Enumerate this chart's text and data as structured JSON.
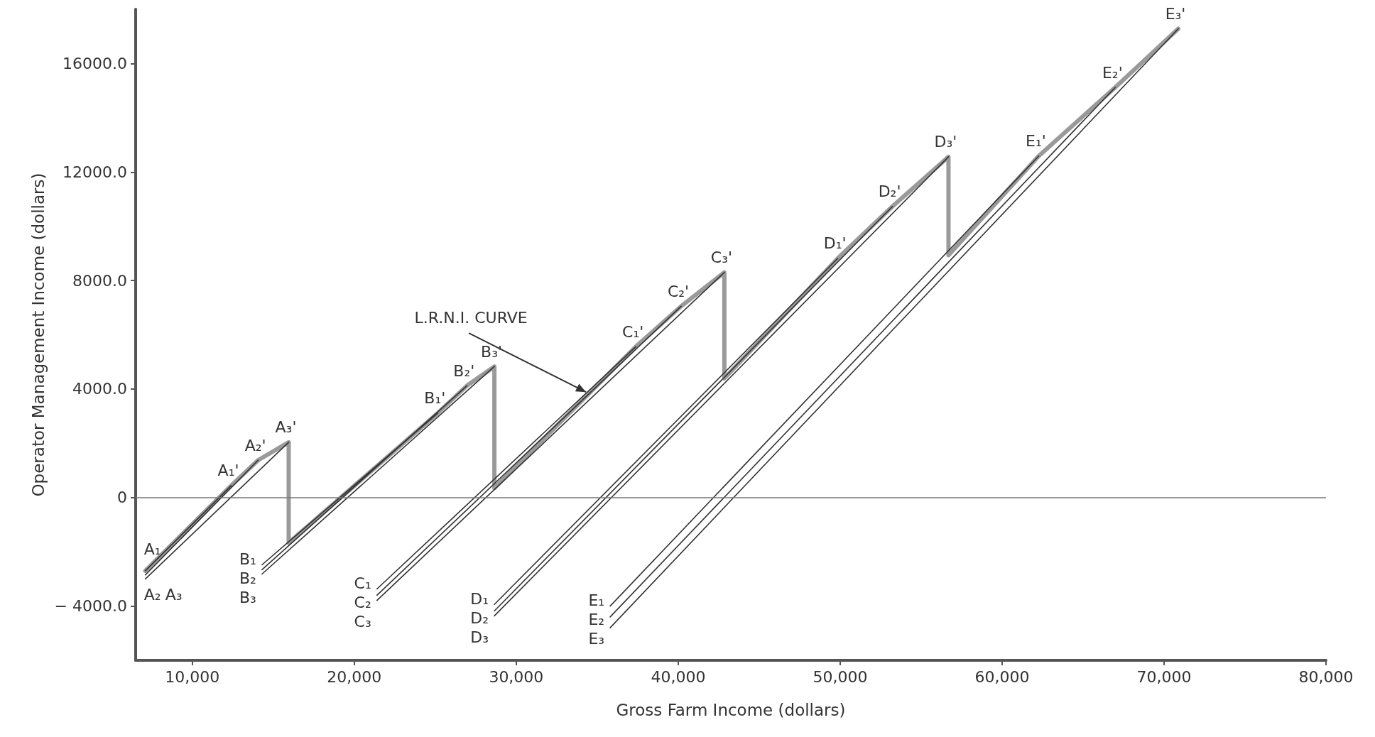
{
  "chart_data": {
    "type": "line",
    "xlabel": "Gross Farm Income (dollars)",
    "ylabel": "Operator Management Income (dollars)",
    "xlim": [
      6500,
      80000
    ],
    "ylim": [
      -6000,
      18000
    ],
    "xticks": [
      {
        "value": 10000,
        "label": "10,000"
      },
      {
        "value": 20000,
        "label": "20,000"
      },
      {
        "value": 30000,
        "label": "30,000"
      },
      {
        "value": 40000,
        "label": "40,000"
      },
      {
        "value": 50000,
        "label": "50,000"
      },
      {
        "value": 60000,
        "label": "60,000"
      },
      {
        "value": 70000,
        "label": "70,000"
      },
      {
        "value": 80000,
        "label": "80,000"
      }
    ],
    "yticks": [
      {
        "value": -4000,
        "label": "− 4000.0"
      },
      0,
      {
        "value": 4000,
        "label": "4000.0"
      },
      {
        "value": 8000,
        "label": "8000.0"
      },
      {
        "value": 12000,
        "label": "12000.0"
      },
      {
        "value": 16000,
        "label": "16000.0"
      }
    ],
    "grid": false,
    "legend": false,
    "marker": "none",
    "line_style": "solid",
    "ref_lines": [
      {
        "axis": "y",
        "value": 0,
        "color": "#777777"
      }
    ],
    "series": [
      {
        "color": "#9a9a9a",
        "x": [
          7100,
          12400,
          14070,
          15950,
          15950,
          25150,
          26950,
          28650,
          28650,
          37380,
          40180,
          42850,
          42850,
          49860,
          53230,
          56690,
          56690,
          62260,
          66990,
          70880
        ],
        "values": [
          -2700,
          440,
          1380,
          2040,
          -1670,
          3110,
          4120,
          4830,
          350,
          5560,
          7050,
          8300,
          4390,
          8820,
          10730,
          12560,
          8930,
          12590,
          15120,
          17280
        ]
      },
      {
        "name": "A₁",
        "color": "#333333",
        "x": [
          7100,
          12400
        ],
        "values": [
          -2700,
          440
        ]
      },
      {
        "name": "A₂",
        "color": "#333333",
        "x": [
          7100,
          14070
        ],
        "values": [
          -2850,
          1380
        ]
      },
      {
        "name": "A₃",
        "color": "#333333",
        "x": [
          7100,
          15950
        ],
        "values": [
          -3000,
          2040
        ]
      },
      {
        "name": "B₁",
        "color": "#333333",
        "x": [
          14300,
          25150
        ],
        "values": [
          -2480,
          3110
        ]
      },
      {
        "name": "B₂",
        "color": "#333333",
        "x": [
          14300,
          26950
        ],
        "values": [
          -2660,
          4120
        ]
      },
      {
        "name": "B₃",
        "color": "#333333",
        "x": [
          14300,
          28650
        ],
        "values": [
          -2820,
          4830
        ]
      },
      {
        "name": "C₁",
        "color": "#333333",
        "x": [
          21400,
          37380
        ],
        "values": [
          -3370,
          5560
        ]
      },
      {
        "name": "C₂",
        "color": "#333333",
        "x": [
          21400,
          40180
        ],
        "values": [
          -3600,
          7050
        ]
      },
      {
        "name": "C₃",
        "color": "#333333",
        "x": [
          21400,
          42850
        ],
        "values": [
          -3790,
          8300
        ]
      },
      {
        "name": "D₁",
        "color": "#333333",
        "x": [
          28650,
          49860
        ],
        "values": [
          -3940,
          8820
        ]
      },
      {
        "name": "D₂",
        "color": "#333333",
        "x": [
          28650,
          53230
        ],
        "values": [
          -4180,
          10730
        ]
      },
      {
        "name": "D₃",
        "color": "#333333",
        "x": [
          28650,
          56690
        ],
        "values": [
          -4360,
          12560
        ]
      },
      {
        "name": "E₁",
        "color": "#333333",
        "x": [
          35800,
          62260
        ],
        "values": [
          -4000,
          12590
        ]
      },
      {
        "name": "E₂",
        "color": "#333333",
        "x": [
          35800,
          66990
        ],
        "values": [
          -4400,
          15120
        ]
      },
      {
        "name": "E₃",
        "color": "#333333",
        "x": [
          35800,
          70880
        ],
        "values": [
          -4800,
          17280
        ]
      }
    ],
    "annotations": [
      {
        "text": "A₁'",
        "x": 12400,
        "y": 440
      },
      {
        "text": "A₂'",
        "x": 14070,
        "y": 1380
      },
      {
        "text": "A₃'",
        "x": 15950,
        "y": 2040
      },
      {
        "text": "B₁'",
        "x": 25150,
        "y": 3110
      },
      {
        "text": "B₂'",
        "x": 26950,
        "y": 4120
      },
      {
        "text": "B₃'",
        "x": 28650,
        "y": 4830
      },
      {
        "text": "C₁'",
        "x": 37380,
        "y": 5560
      },
      {
        "text": "C₂'",
        "x": 40180,
        "y": 7050
      },
      {
        "text": "C₃'",
        "x": 42850,
        "y": 8300
      },
      {
        "text": "D₁'",
        "x": 49860,
        "y": 8820
      },
      {
        "text": "D₂'",
        "x": 53230,
        "y": 10730
      },
      {
        "text": "D₃'",
        "x": 56690,
        "y": 12560
      },
      {
        "text": "E₁'",
        "x": 62260,
        "y": 12590
      },
      {
        "text": "E₂'",
        "x": 66990,
        "y": 15120
      },
      {
        "text": "E₃'",
        "x": 70880,
        "y": 17280
      },
      {
        "text": "L.R.N.I. CURVE",
        "x": 34440,
        "y": 3810
      }
    ]
  }
}
